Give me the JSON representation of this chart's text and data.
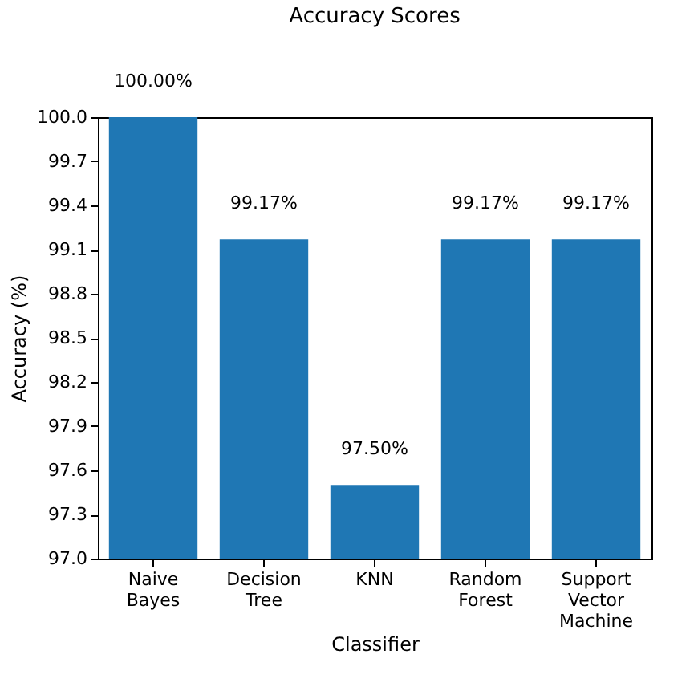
{
  "chart_data": {
    "type": "bar",
    "title": "Accuracy Scores",
    "xlabel": "Classifier",
    "ylabel": "Accuracy (%)",
    "categories": [
      "Naive Bayes",
      "Decision Tree",
      "KNN",
      "Random Forest",
      "Support Vector Machine"
    ],
    "values": [
      100,
      99.17,
      97.5,
      99.17,
      99.17
    ],
    "value_labels": [
      "100.00%",
      "99.17%",
      "97.50%",
      "99.17%",
      "99.17%"
    ],
    "color": "#1f77b4",
    "ylim": [
      97,
      100
    ],
    "yticks": [
      {
        "value": 97,
        "label": "97.0"
      },
      {
        "value": 97.3,
        "label": "97.3"
      },
      {
        "value": 97.6,
        "label": "97.6"
      },
      {
        "value": 97.9,
        "label": "97.9"
      },
      {
        "value": 98.2,
        "label": "98.2"
      },
      {
        "value": 98.5,
        "label": "98.5"
      },
      {
        "value": 98.8,
        "label": "98.8"
      },
      {
        "value": 99.1,
        "label": "99.1"
      },
      {
        "value": 99.4,
        "label": "99.4"
      },
      {
        "value": 99.7,
        "label": "99.7"
      },
      {
        "value": 100,
        "label": "100.0"
      }
    ],
    "grid": false
  }
}
